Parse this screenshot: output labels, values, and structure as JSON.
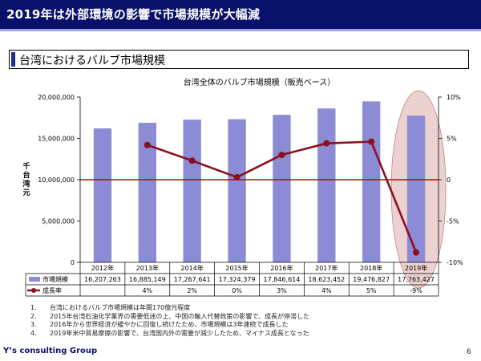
{
  "header": {
    "title": "2019年は外部環境の影響で市場規模が大幅減"
  },
  "section": {
    "title": "台湾におけるバルブ市場規模"
  },
  "chart_data": {
    "type": "bar",
    "title": "台湾全体のバルブ市場規模（販売ベース）",
    "ylabel": "千台湾元",
    "categories": [
      "2012年",
      "2013年",
      "2014年",
      "2015年",
      "2016年",
      "2017年",
      "2018年",
      "2019年"
    ],
    "ylim": [
      0,
      20000000
    ],
    "yticks": [
      "0",
      "5,000,000",
      "10,000,000",
      "15,000,000",
      "20,000,000"
    ],
    "y2lim": [
      -10,
      10
    ],
    "y2ticks": [
      "-10%",
      "-5%",
      "0",
      "5%",
      "10%"
    ],
    "series": [
      {
        "name": "市場規模",
        "type": "bar",
        "color": "#8c8cd6",
        "values": [
          16207263,
          16885149,
          17267641,
          17324379,
          17846614,
          18623452,
          19476827,
          17763427
        ],
        "labels": [
          "16,207,263",
          "16,885,149",
          "17,267,641",
          "17,324,379",
          "17,846,614",
          "18,623,452",
          "19,476,827",
          "17,763,427"
        ]
      },
      {
        "name": "成長率",
        "type": "line",
        "axis": "right",
        "color": "#8b0f1e",
        "values": [
          null,
          4.2,
          2.3,
          0.3,
          3.0,
          4.4,
          4.6,
          -8.8
        ],
        "labels": [
          "",
          "4%",
          "2%",
          "0%",
          "3%",
          "4%",
          "5%",
          "-9%"
        ]
      }
    ],
    "reference_line": {
      "axis": "right",
      "value": 0,
      "color": "#cc0000"
    },
    "highlight": {
      "category": "2019年",
      "color": "#d9a3a3"
    },
    "grid": false,
    "legend": "table-below"
  },
  "notes": [
    {
      "num": "1.",
      "text": "台湾におけるバルブ市場規模は年間170億元程度"
    },
    {
      "num": "2.",
      "text": "2015年台湾石油化学業界の需要低迷の上、中国の輸入代替政策の影響で、成長が停滞した"
    },
    {
      "num": "3.",
      "text": "2016年から世界経済が緩やかに回復し続けたため、市場規模は3年連続で成長した"
    },
    {
      "num": "4.",
      "text": "2019年米中貿易摩擦の影響で、台湾国内外の需要が減少したため、マイナス成長となった"
    }
  ],
  "footer": {
    "company": "Y’s consulting Group",
    "page_number": "6"
  }
}
